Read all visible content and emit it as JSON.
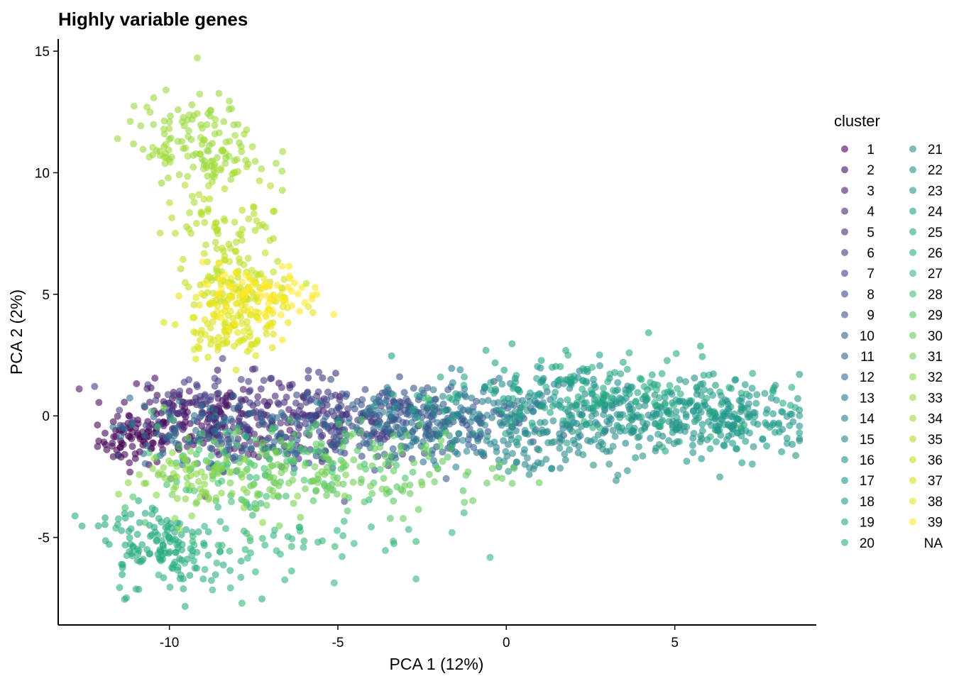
{
  "chart_data": {
    "type": "scatter",
    "title": "Highly variable genes",
    "xlabel": "PCA 1 (12%)",
    "ylabel": "PCA 2 (2%)",
    "xlim": [
      -13.3,
      9.2
    ],
    "ylim": [
      -8.6,
      15.5
    ],
    "x_ticks": [
      -10,
      -5,
      0,
      5
    ],
    "x_tick_labels": [
      "-10",
      "-5",
      "0",
      "5"
    ],
    "y_ticks": [
      -5,
      0,
      5,
      10,
      15
    ],
    "y_tick_labels": [
      "-5",
      "0",
      "5",
      "10",
      "15"
    ],
    "grid": false,
    "legend": {
      "title": "cluster",
      "placement": "right",
      "labels": [
        "1",
        "2",
        "3",
        "4",
        "5",
        "6",
        "7",
        "8",
        "9",
        "10",
        "11",
        "12",
        "13",
        "14",
        "15",
        "16",
        "17",
        "18",
        "19",
        "20",
        "21",
        "22",
        "23",
        "24",
        "25",
        "26",
        "27",
        "28",
        "29",
        "30",
        "31",
        "32",
        "33",
        "34",
        "35",
        "36",
        "37",
        "38",
        "39",
        "NA"
      ]
    },
    "colormap": "viridis",
    "point_alpha": 0.6,
    "series": [
      {
        "name": "1",
        "color": "#440154",
        "center": [
          -11.0,
          -1.0
        ],
        "spread": [
          0.55,
          0.5
        ]
      },
      {
        "name": "2",
        "color": "#460B5E",
        "center": [
          -9.8,
          -0.2
        ],
        "spread": [
          1.0,
          0.7
        ]
      },
      {
        "name": "3",
        "color": "#471567",
        "center": [
          -8.5,
          0.3
        ],
        "spread": [
          1.2,
          0.7
        ]
      },
      {
        "name": "4",
        "color": "#472070",
        "center": [
          -7.6,
          -0.6
        ],
        "spread": [
          1.3,
          0.8
        ]
      },
      {
        "name": "5",
        "color": "#462B7A",
        "center": [
          -6.2,
          0.0
        ],
        "spread": [
          1.2,
          0.8
        ]
      },
      {
        "name": "6",
        "color": "#453581",
        "center": [
          -5.0,
          -0.5
        ],
        "spread": [
          1.3,
          0.7
        ]
      },
      {
        "name": "7",
        "color": "#423F85",
        "center": [
          -8.8,
          0.4
        ],
        "spread": [
          1.2,
          0.8
        ]
      },
      {
        "name": "8",
        "color": "#3E4989",
        "center": [
          -4.0,
          -0.3
        ],
        "spread": [
          1.4,
          0.8
        ]
      },
      {
        "name": "9",
        "color": "#3A528B",
        "center": [
          -3.0,
          0.0
        ],
        "spread": [
          1.3,
          0.7
        ]
      },
      {
        "name": "10",
        "color": "#365C8D",
        "center": [
          -1.5,
          -0.3
        ],
        "spread": [
          1.5,
          0.8
        ]
      },
      {
        "name": "11",
        "color": "#32658E",
        "center": [
          -6.8,
          -0.8
        ],
        "spread": [
          1.4,
          0.7
        ]
      },
      {
        "name": "12",
        "color": "#2E6D8E",
        "center": [
          -9.5,
          -0.8
        ],
        "spread": [
          1.0,
          0.8
        ]
      },
      {
        "name": "13",
        "color": "#2B758E",
        "center": [
          -2.5,
          -0.6
        ],
        "spread": [
          1.5,
          0.8
        ]
      },
      {
        "name": "14",
        "color": "#287D8E",
        "center": [
          -0.5,
          0.2
        ],
        "spread": [
          1.6,
          0.8
        ]
      },
      {
        "name": "15",
        "color": "#25858E",
        "center": [
          1.5,
          0.1
        ],
        "spread": [
          1.8,
          0.8
        ]
      },
      {
        "name": "16",
        "color": "#228D8D",
        "center": [
          3.5,
          0.3
        ],
        "spread": [
          1.8,
          0.8
        ]
      },
      {
        "name": "17",
        "color": "#1F958B",
        "center": [
          5.5,
          -0.2
        ],
        "spread": [
          1.5,
          0.7
        ]
      },
      {
        "name": "18",
        "color": "#1F9D89",
        "center": [
          7.0,
          -0.5
        ],
        "spread": [
          0.8,
          0.6
        ]
      },
      {
        "name": "19",
        "color": "#22A785",
        "center": [
          2.5,
          0.8
        ],
        "spread": [
          2.0,
          0.9
        ]
      },
      {
        "name": "20",
        "color": "#27AD81",
        "center": [
          4.5,
          0.5
        ],
        "spread": [
          1.8,
          0.8
        ]
      },
      {
        "name": "21",
        "color": "#2D8A8C",
        "center": [
          0.5,
          -0.8
        ],
        "spread": [
          1.5,
          0.9
        ]
      },
      {
        "name": "22",
        "color": "#299185",
        "center": [
          3.0,
          -0.8
        ],
        "spread": [
          2.0,
          0.8
        ]
      },
      {
        "name": "23",
        "color": "#23998A",
        "center": [
          6.0,
          0.3
        ],
        "spread": [
          1.4,
          0.7
        ]
      },
      {
        "name": "24",
        "color": "#20A386",
        "center": [
          1.0,
          1.0
        ],
        "spread": [
          1.8,
          0.8
        ]
      },
      {
        "name": "25",
        "color": "#24A884",
        "center": [
          -10.5,
          -5.0
        ],
        "spread": [
          0.8,
          0.9
        ]
      },
      {
        "name": "26",
        "color": "#28AE80",
        "center": [
          -9.8,
          -5.8
        ],
        "spread": [
          0.9,
          0.8
        ]
      },
      {
        "name": "27",
        "color": "#35B779",
        "center": [
          -6.5,
          -5.0
        ],
        "spread": [
          2.2,
          1.0
        ]
      },
      {
        "name": "28",
        "color": "#42BE71",
        "center": [
          -8.0,
          -2.0
        ],
        "spread": [
          1.8,
          1.0
        ]
      },
      {
        "name": "29",
        "color": "#52C569",
        "center": [
          -5.5,
          -2.0
        ],
        "spread": [
          2.0,
          1.0
        ]
      },
      {
        "name": "30",
        "color": "#65CB5E",
        "center": [
          -3.5,
          -2.2
        ],
        "spread": [
          1.8,
          0.9
        ]
      },
      {
        "name": "31",
        "color": "#75D054",
        "center": [
          -7.0,
          -2.5
        ],
        "spread": [
          1.6,
          0.8
        ]
      },
      {
        "name": "32",
        "color": "#8AD547",
        "center": [
          -9.5,
          -2.6
        ],
        "spread": [
          1.0,
          0.7
        ]
      },
      {
        "name": "33",
        "color": "#98D83E",
        "center": [
          -9.5,
          11.5
        ],
        "spread": [
          0.9,
          0.9
        ]
      },
      {
        "name": "34",
        "color": "#A2DA37",
        "center": [
          -8.8,
          10.8
        ],
        "spread": [
          0.9,
          0.9
        ]
      },
      {
        "name": "35",
        "color": "#B2DD2D",
        "center": [
          -8.3,
          8.0
        ],
        "spread": [
          0.9,
          1.0
        ]
      },
      {
        "name": "36",
        "color": "#C5E021",
        "center": [
          -8.0,
          5.6
        ],
        "spread": [
          0.8,
          0.6
        ]
      },
      {
        "name": "37",
        "color": "#D8E219",
        "center": [
          -8.4,
          3.4
        ],
        "spread": [
          0.6,
          0.5
        ]
      },
      {
        "name": "38",
        "color": "#E5E419",
        "center": [
          -7.8,
          4.6
        ],
        "spread": [
          0.8,
          0.6
        ]
      },
      {
        "name": "39",
        "color": "#FDE725",
        "center": [
          -7.2,
          5.0
        ],
        "spread": [
          0.9,
          0.6
        ]
      },
      {
        "name": "NA",
        "color": "#ffffff",
        "center": null,
        "spread": null
      }
    ]
  }
}
